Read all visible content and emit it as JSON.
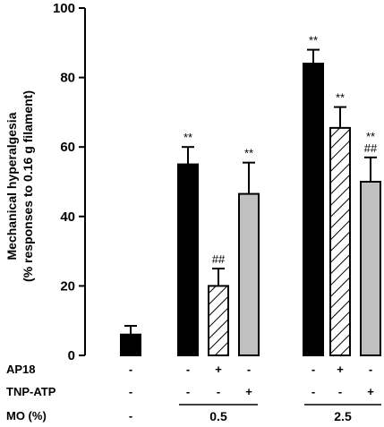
{
  "chart_data": {
    "type": "bar",
    "ylabel_line1": "Mechanical hyperalgesia",
    "ylabel_line2": "(% responses to 0.16 g filament)",
    "ylim": [
      0,
      100
    ],
    "yticks": [
      "0",
      "20",
      "40",
      "60",
      "80",
      "100"
    ],
    "colors": {
      "black": "#000000",
      "hatched": "#ffffff",
      "gray": "#c0c0c0"
    },
    "bars": [
      {
        "value": 6,
        "error": 2.5,
        "fill": "black",
        "sig": []
      },
      {
        "value": 55,
        "error": 5,
        "fill": "black",
        "sig": [
          "**"
        ]
      },
      {
        "value": 20,
        "error": 5,
        "fill": "hatched",
        "sig": [
          "##"
        ]
      },
      {
        "value": 46.5,
        "error": 9,
        "fill": "gray",
        "sig": [
          "**"
        ]
      },
      {
        "value": 84,
        "error": 4,
        "fill": "black",
        "sig": [
          "**"
        ]
      },
      {
        "value": 65.5,
        "error": 6,
        "fill": "hatched",
        "sig": [
          "**"
        ]
      },
      {
        "value": 50,
        "error": 7,
        "fill": "gray",
        "sig": [
          "**",
          "##"
        ]
      }
    ],
    "table": {
      "rows": [
        {
          "label": "AP18",
          "cells": [
            "-",
            "-",
            "+",
            "-",
            "-",
            "+",
            "-"
          ]
        },
        {
          "label": "TNP-ATP",
          "cells": [
            "-",
            "-",
            "-",
            "+",
            "-",
            "-",
            "+"
          ]
        },
        {
          "label": "MO (%)",
          "cells": [
            "-"
          ]
        }
      ],
      "groups": [
        "0.5",
        "2.5"
      ]
    }
  }
}
